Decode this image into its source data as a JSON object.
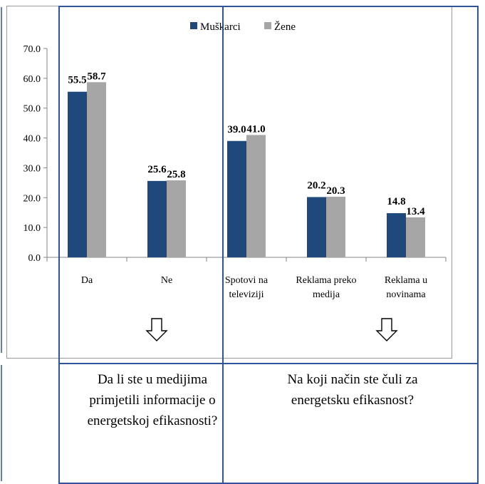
{
  "legend": {
    "muskarci": {
      "label": "Muškarci",
      "color": "#1f497d"
    },
    "zene": {
      "label": "Žene",
      "color": "#a6a6a6"
    }
  },
  "questions": {
    "left": "Da li ste u medijima primjetili informacije o energetskoj efikasnosti?",
    "right": "Na koji način ste čuli za energetsku efikasnost?"
  },
  "chart_data": {
    "type": "bar",
    "categories": [
      [
        "Da"
      ],
      [
        "Ne"
      ],
      [
        "Spotovi na",
        "televiziji"
      ],
      [
        "Reklama preko",
        "medija"
      ],
      [
        "Reklama u",
        "novinama"
      ]
    ],
    "series": [
      {
        "name": "Muškarci",
        "color": "#1f497d",
        "values": [
          55.5,
          25.6,
          39.0,
          20.2,
          14.8
        ]
      },
      {
        "name": "Žene",
        "color": "#a6a6a6",
        "values": [
          58.7,
          25.8,
          41.0,
          20.3,
          13.4
        ]
      }
    ],
    "ylim": [
      0,
      70
    ],
    "yticks": [
      "0.0",
      "10.0",
      "20.0",
      "30.0",
      "40.0",
      "50.0",
      "60.0",
      "70.0"
    ],
    "grid": false,
    "legend_position": "top-center",
    "data_labels": true
  }
}
